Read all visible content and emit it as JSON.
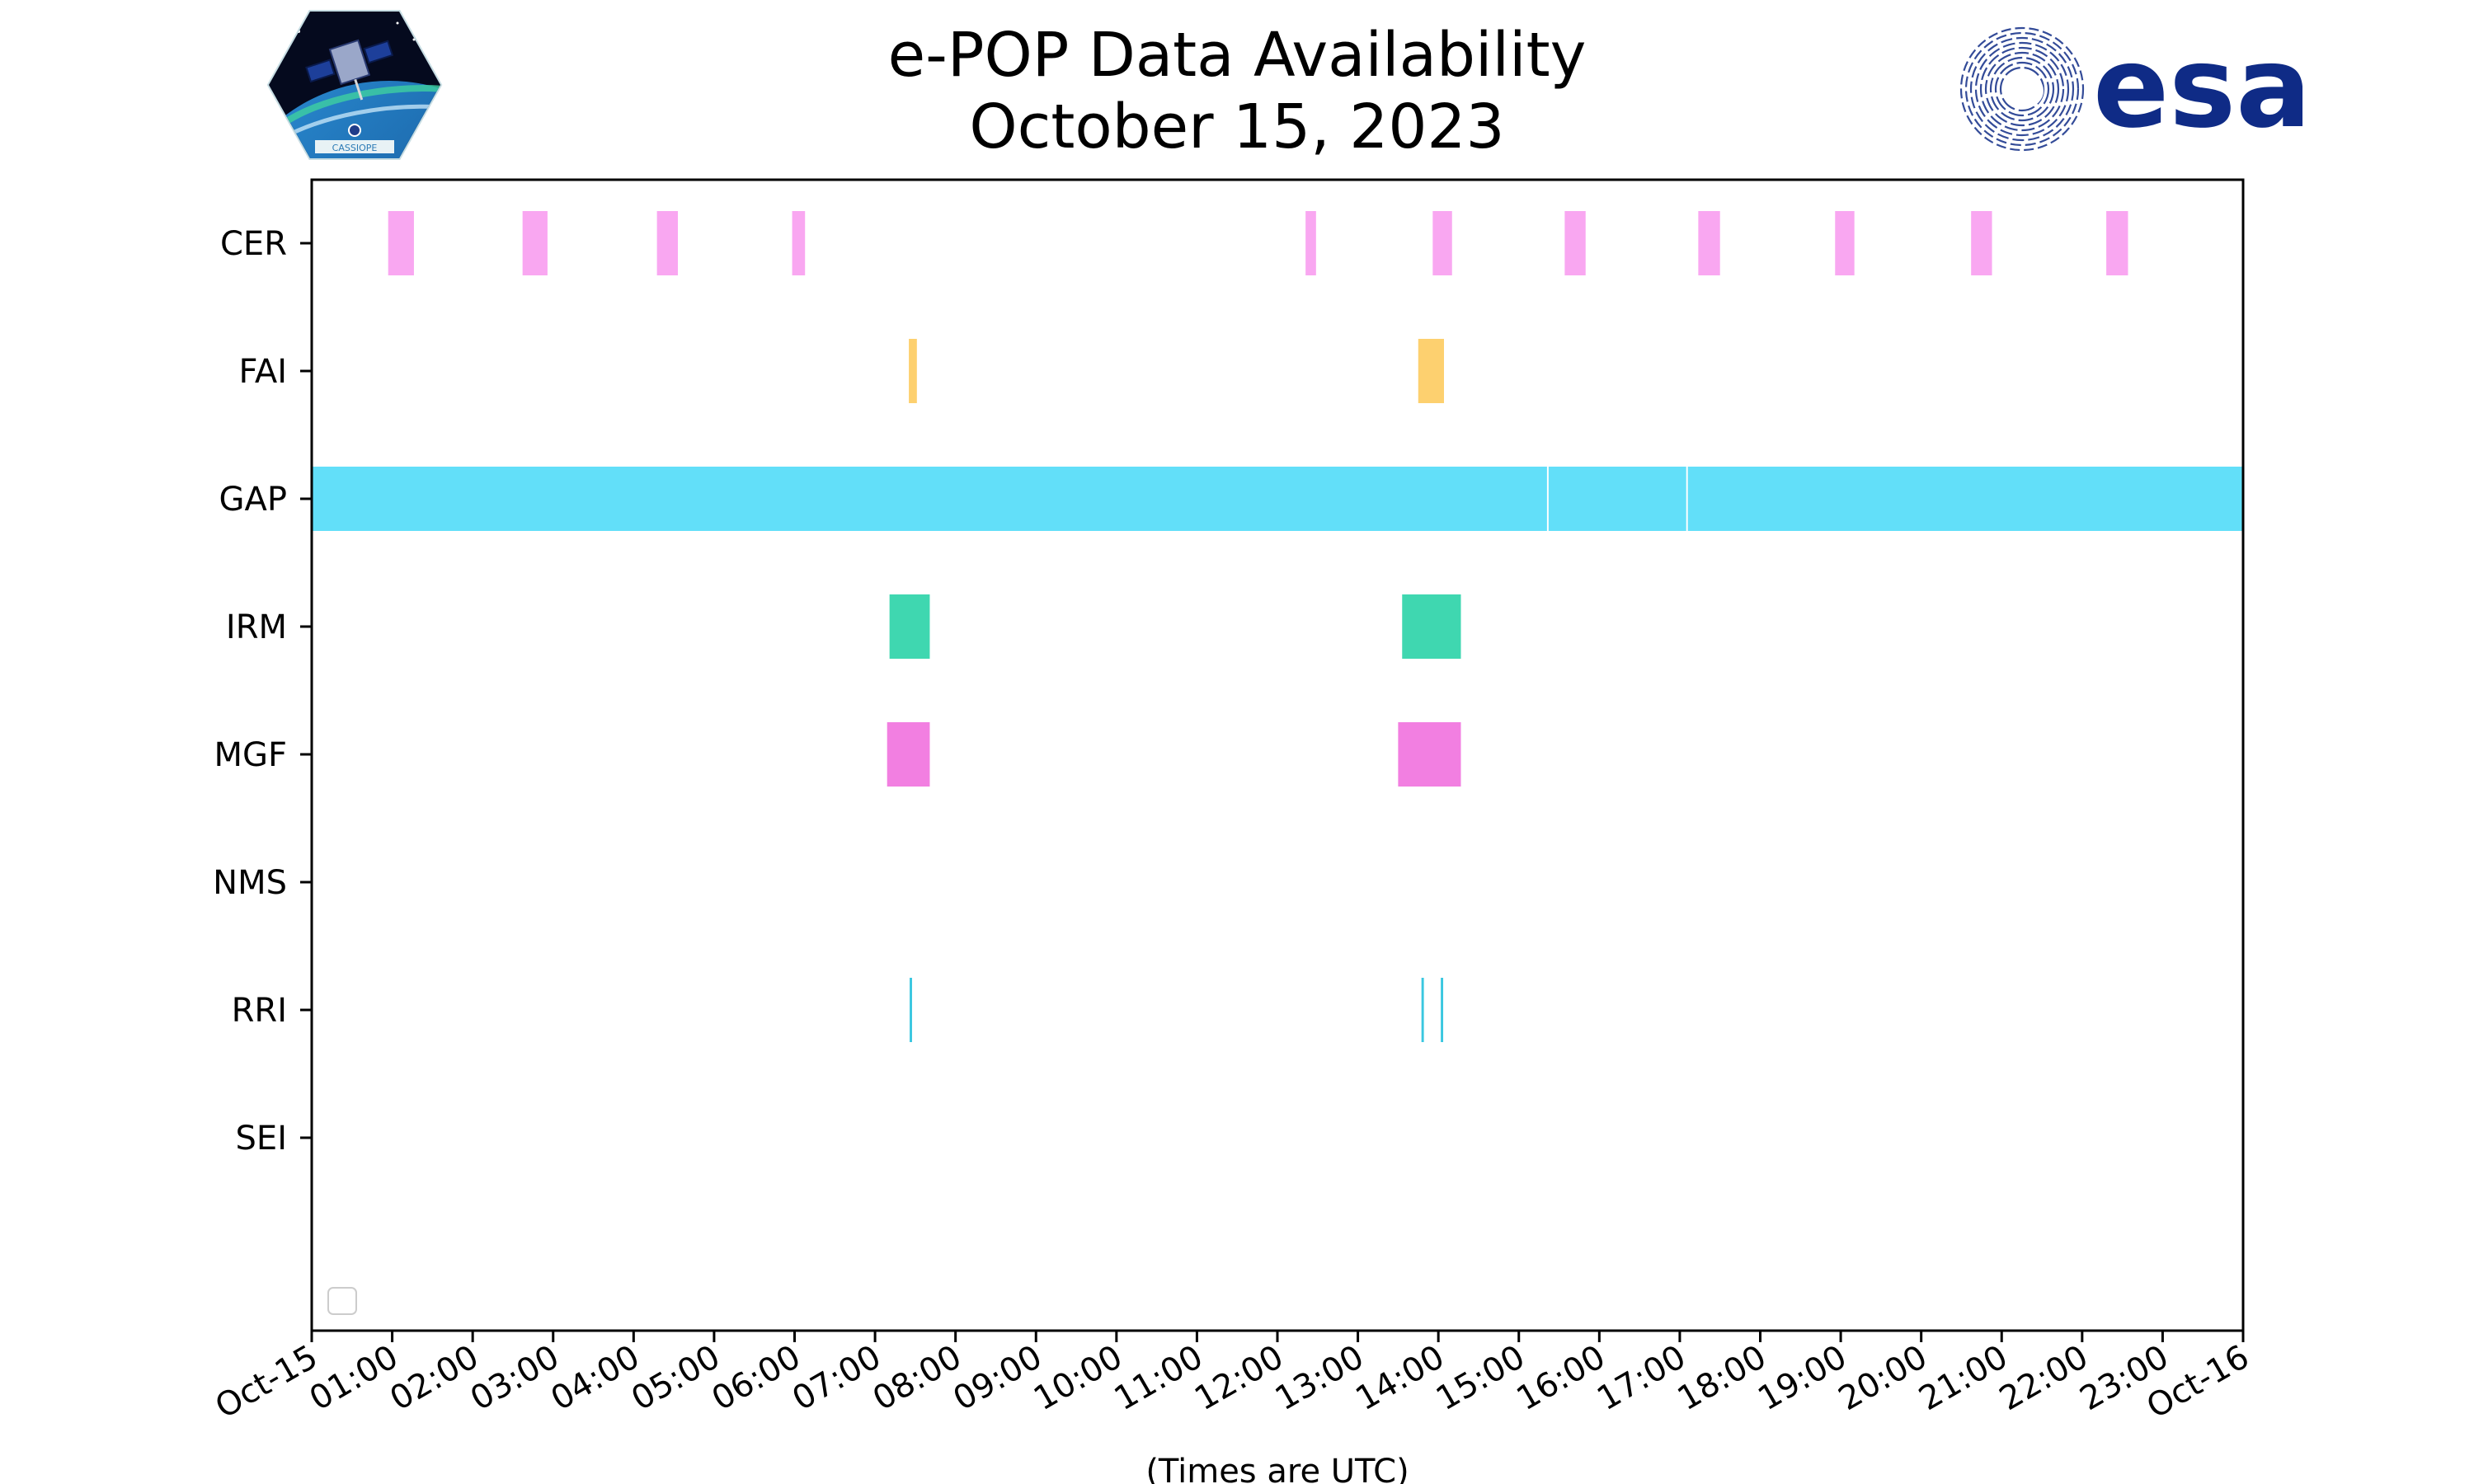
{
  "title_line1": "e-POP Data Availability",
  "title_line2": "October 15, 2023",
  "logos": {
    "left": {
      "icon": "cassiope-mission-logo-icon",
      "text": "CASSIOPE"
    },
    "right": {
      "icon": "esa-logo-icon",
      "text": "esa"
    }
  },
  "chart_data": {
    "type": "timeline",
    "title": "e-POP Data Availability\nOctober 15, 2023",
    "xlabel": "(Times are UTC)",
    "ylabel": "",
    "x_unit": "hours UTC",
    "xlim": [
      0,
      24
    ],
    "x_ticks": [
      {
        "value": 0,
        "label": "Oct-15"
      },
      {
        "value": 1,
        "label": "01:00"
      },
      {
        "value": 2,
        "label": "02:00"
      },
      {
        "value": 3,
        "label": "03:00"
      },
      {
        "value": 4,
        "label": "04:00"
      },
      {
        "value": 5,
        "label": "05:00"
      },
      {
        "value": 6,
        "label": "06:00"
      },
      {
        "value": 7,
        "label": "07:00"
      },
      {
        "value": 8,
        "label": "08:00"
      },
      {
        "value": 9,
        "label": "09:00"
      },
      {
        "value": 10,
        "label": "10:00"
      },
      {
        "value": 11,
        "label": "11:00"
      },
      {
        "value": 12,
        "label": "12:00"
      },
      {
        "value": 13,
        "label": "13:00"
      },
      {
        "value": 14,
        "label": "14:00"
      },
      {
        "value": 15,
        "label": "15:00"
      },
      {
        "value": 16,
        "label": "16:00"
      },
      {
        "value": 17,
        "label": "17:00"
      },
      {
        "value": 18,
        "label": "18:00"
      },
      {
        "value": 19,
        "label": "19:00"
      },
      {
        "value": 20,
        "label": "20:00"
      },
      {
        "value": 21,
        "label": "21:00"
      },
      {
        "value": 22,
        "label": "22:00"
      },
      {
        "value": 23,
        "label": "23:00"
      },
      {
        "value": 24,
        "label": "Oct-16"
      }
    ],
    "grid": false,
    "legend": {
      "placement": "bottom-left",
      "entries": []
    },
    "series": [
      {
        "name": "CER",
        "color": "#f9a7f1",
        "intervals": [
          [
            0.95,
            1.27
          ],
          [
            2.62,
            2.93
          ],
          [
            4.29,
            4.55
          ],
          [
            5.97,
            6.13
          ],
          [
            12.35,
            12.48
          ],
          [
            13.93,
            14.17
          ],
          [
            15.57,
            15.83
          ],
          [
            17.23,
            17.5
          ],
          [
            18.93,
            19.17
          ],
          [
            20.62,
            20.88
          ],
          [
            22.3,
            22.57
          ]
        ]
      },
      {
        "name": "FAI",
        "color": "#fdd06f",
        "intervals": [
          [
            7.42,
            7.52
          ],
          [
            13.75,
            14.07
          ]
        ]
      },
      {
        "name": "GAP",
        "color": "#62dff9",
        "intervals": [
          [
            0.0,
            15.35
          ],
          [
            15.37,
            17.08
          ],
          [
            17.1,
            24.0
          ]
        ]
      },
      {
        "name": "IRM",
        "color": "#3fd7b0",
        "intervals": [
          [
            7.18,
            7.68
          ],
          [
            13.55,
            14.28
          ]
        ]
      },
      {
        "name": "MGF",
        "color": "#f27fe1",
        "intervals": [
          [
            7.15,
            7.68
          ],
          [
            13.5,
            14.28
          ]
        ]
      },
      {
        "name": "NMS",
        "color": "#7fb8ff",
        "intervals": []
      },
      {
        "name": "RRI",
        "color": "#3ac7e0",
        "intervals": [
          [
            7.43,
            7.46
          ],
          [
            13.79,
            13.82
          ],
          [
            14.03,
            14.06
          ]
        ]
      },
      {
        "name": "SEI",
        "color": "#cccccc",
        "intervals": []
      }
    ]
  }
}
